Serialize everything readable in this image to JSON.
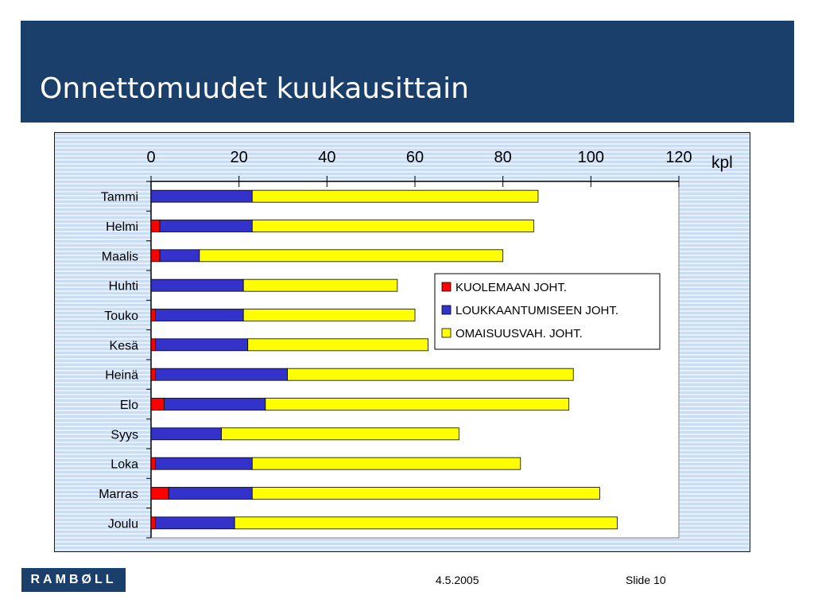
{
  "slide": {
    "title": "Onnettomuudet kuukausittain",
    "date": "4.5.2005",
    "slide_label": "Slide",
    "slide_number": "10",
    "logo_text": "RAMBØLL"
  },
  "colors": {
    "header_bg": "#1b3f6b",
    "kuolema": "#ff0000",
    "loukkaantuminen": "#3333cc",
    "omaisuus": "#ffff00"
  },
  "chart_data": {
    "type": "bar",
    "orientation": "horizontal",
    "stacked": true,
    "title": "",
    "xlabel": "",
    "unit_label": "kpl",
    "xlim": [
      0,
      120
    ],
    "xticks": [
      0,
      20,
      40,
      60,
      80,
      100,
      120
    ],
    "axis_position": "top",
    "legend_position": "right-middle",
    "categories": [
      "Tammi",
      "Helmi",
      "Maalis",
      "Huhti",
      "Touko",
      "Kesä",
      "Heinä",
      "Elo",
      "Syys",
      "Loka",
      "Marras",
      "Joulu"
    ],
    "series": [
      {
        "name": "KUOLEMAAN JOHT.",
        "color": "#ff0000",
        "values": [
          0,
          2,
          2,
          0,
          1,
          1,
          1,
          3,
          0,
          1,
          4,
          1
        ]
      },
      {
        "name": "LOUKKAANTUMISEEN JOHT.",
        "color": "#3333cc",
        "values": [
          23,
          21,
          9,
          21,
          20,
          21,
          30,
          23,
          16,
          22,
          19,
          18
        ]
      },
      {
        "name": "OMAISUUSVAH. JOHT.",
        "color": "#ffff00",
        "values": [
          65,
          64,
          69,
          35,
          39,
          41,
          65,
          69,
          54,
          61,
          79,
          87
        ]
      }
    ]
  }
}
